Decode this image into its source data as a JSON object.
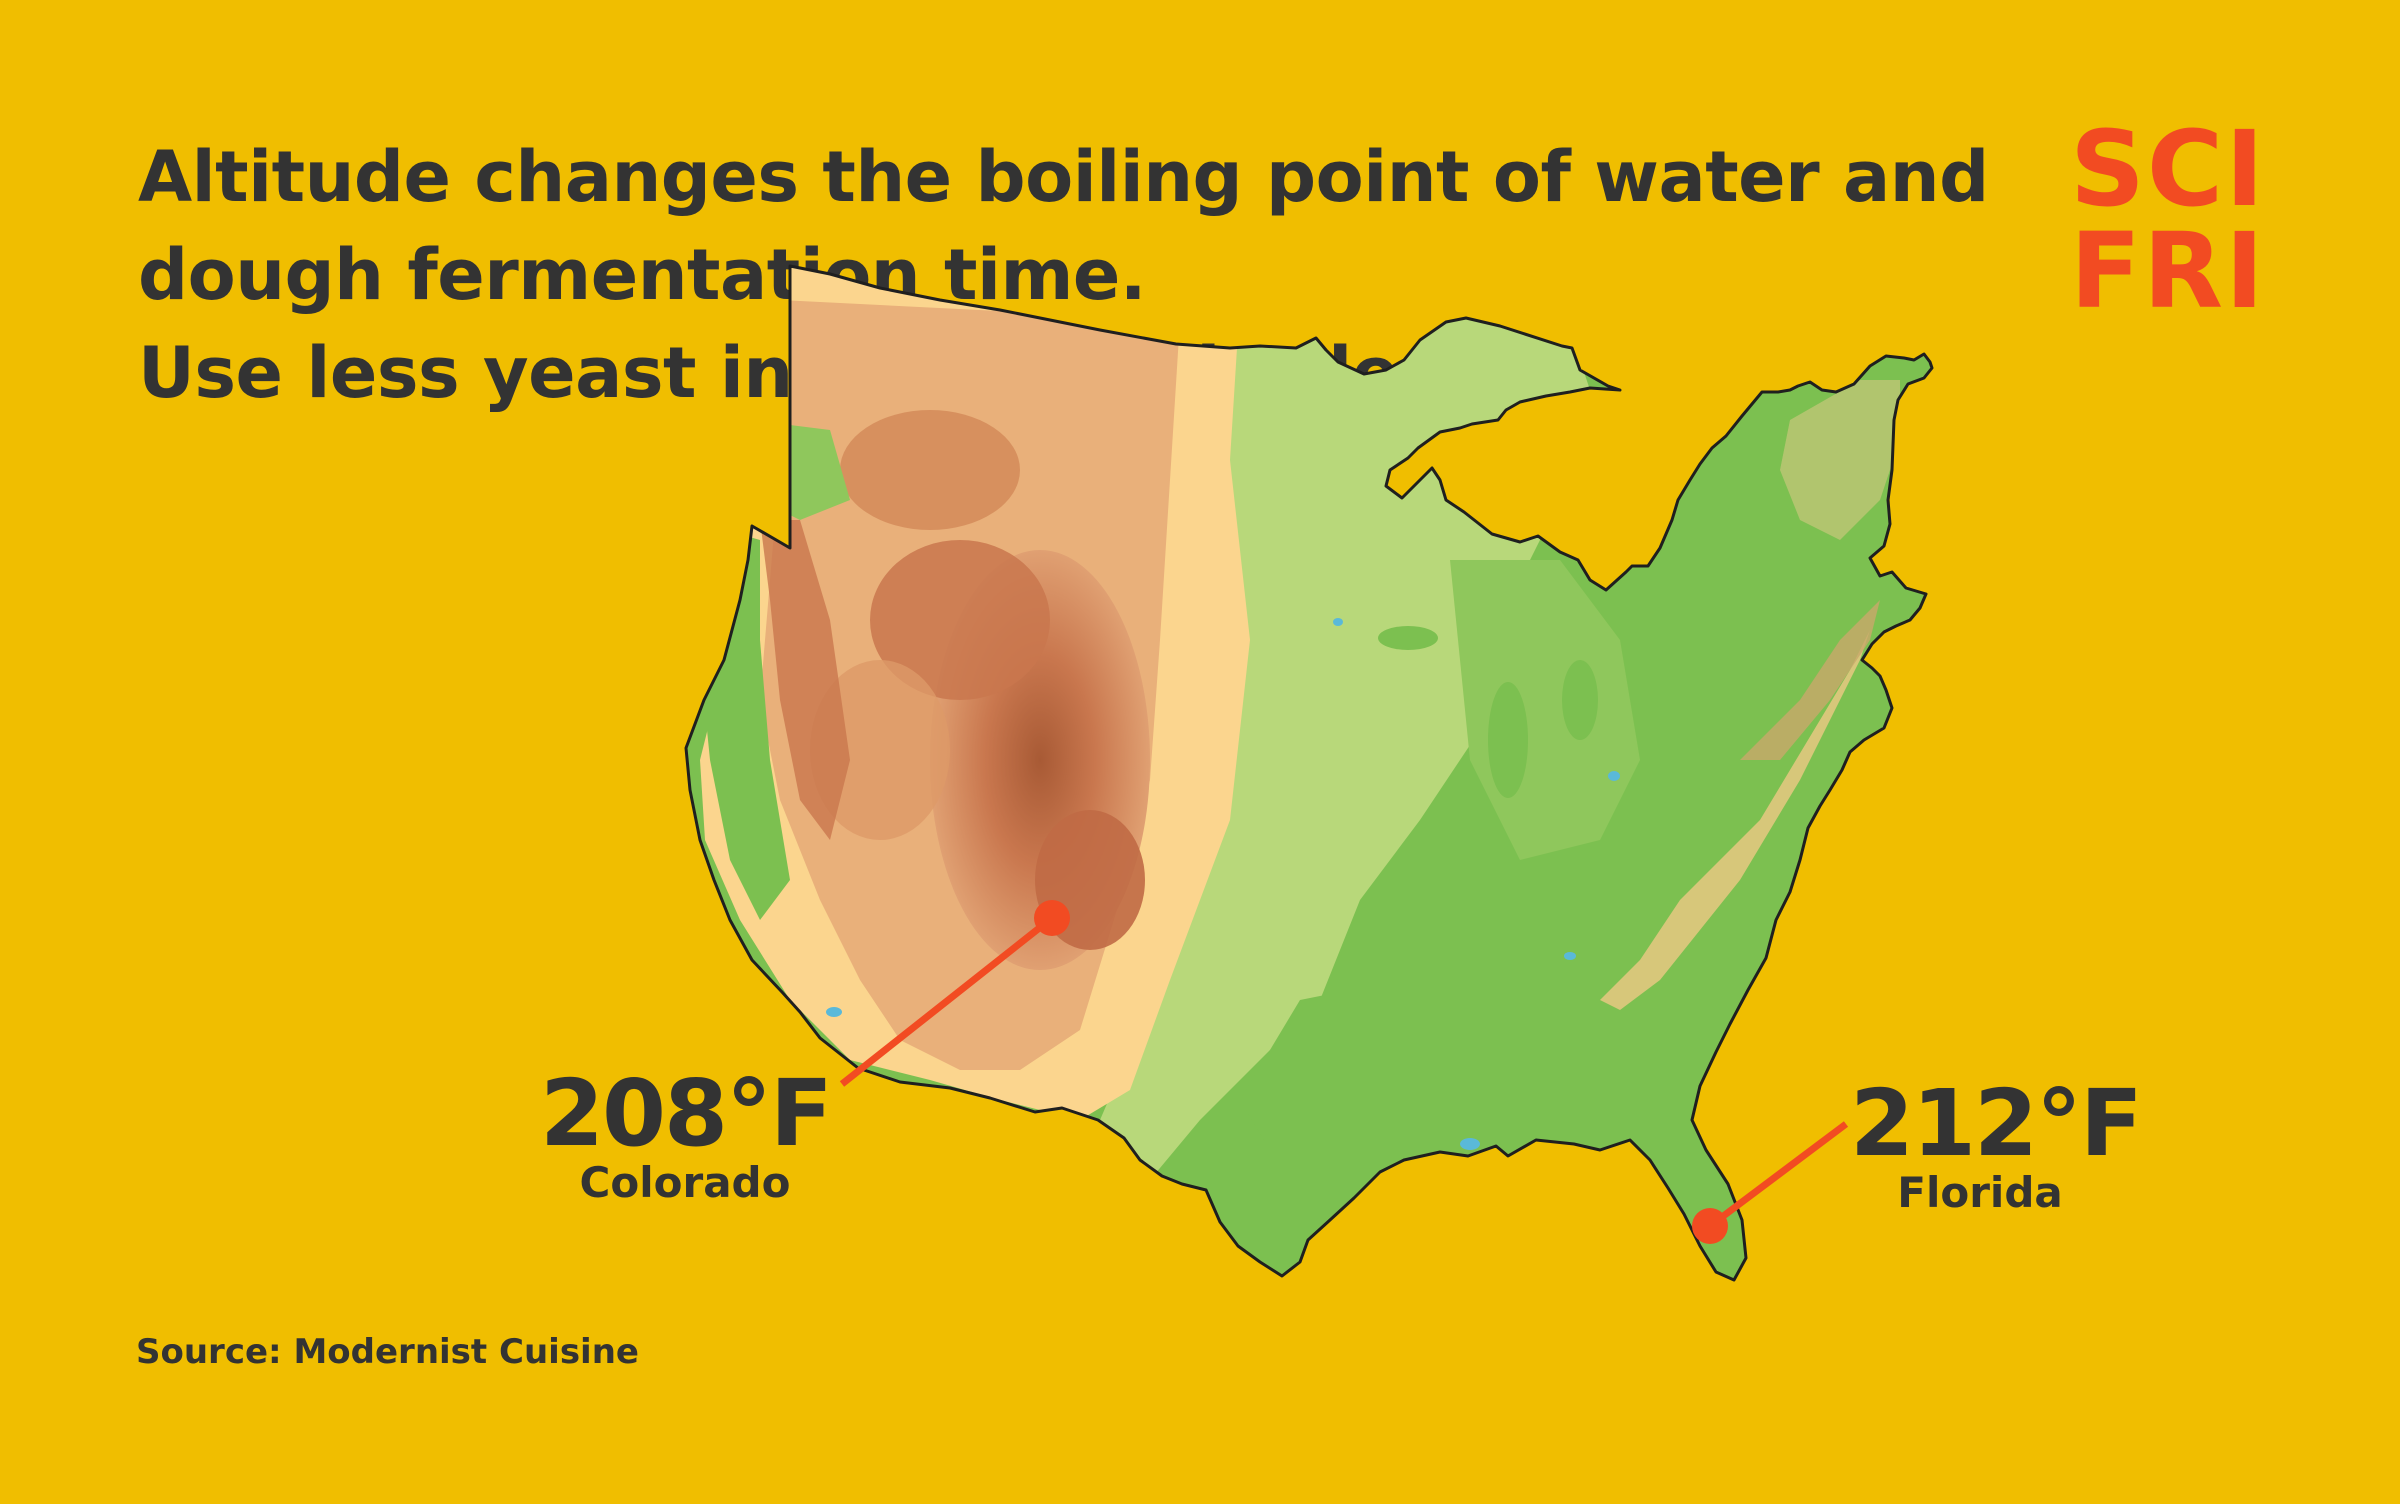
{
  "headline": {
    "line1": "Altitude changes the boiling point of water and",
    "line2": "dough fermentation time.",
    "line3": "Use less yeast in higher altitudes."
  },
  "logo": {
    "line1": "SCI",
    "line2": "FRI",
    "color": "#f24b22"
  },
  "colors": {
    "background": "#f0be00",
    "text": "#333333",
    "marker": "#f24b22",
    "lowland_green": "#7cc050",
    "plains_green": "#b8d87a",
    "plateau_tan": "#fbd58e",
    "highland_orange": "#e9b07a",
    "mountain_brown": "#c9774e",
    "peak_brown": "#a85a35"
  },
  "callouts": [
    {
      "temp": "208°F",
      "place": "Colorado"
    },
    {
      "temp": "212°F",
      "place": "Florida"
    }
  ],
  "source": "Source: Modernist Cuisine"
}
